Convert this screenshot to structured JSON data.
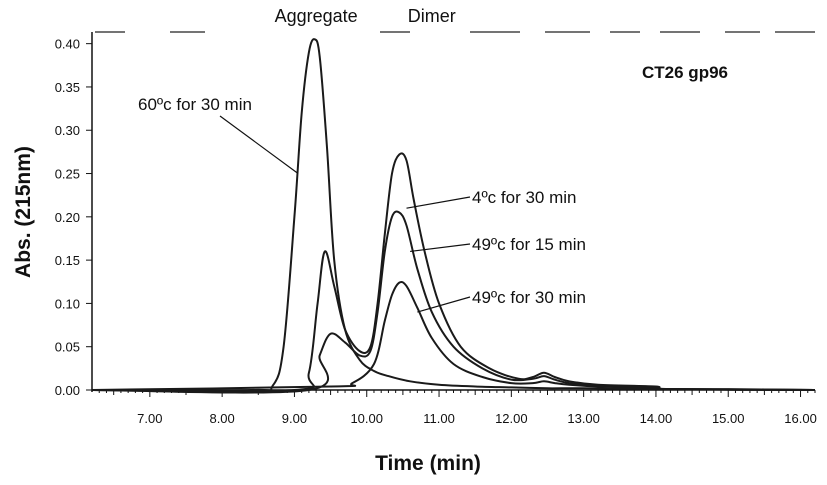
{
  "chart_data": {
    "type": "line",
    "title": "CT26 gp96",
    "xlabel": "Time (min)",
    "ylabel": "Abs. (215nm)",
    "xlim": [
      6.2,
      16.2
    ],
    "ylim": [
      0.0,
      0.41
    ],
    "x_ticks": [
      7.0,
      8.0,
      9.0,
      10.0,
      11.0,
      12.0,
      13.0,
      14.0,
      15.0,
      16.0
    ],
    "x_tick_labels": [
      "7.00",
      "8.00",
      "9.00",
      "10.00",
      "11.00",
      "12.00",
      "13.00",
      "14.00",
      "15.00",
      "16.00"
    ],
    "y_ticks": [
      0.0,
      0.05,
      0.1,
      0.15,
      0.2,
      0.25,
      0.3,
      0.35,
      0.4
    ],
    "y_tick_labels": [
      "0.00",
      "0.05",
      "0.10",
      "0.15",
      "0.20",
      "0.25",
      "0.30",
      "0.35",
      "0.40"
    ],
    "peak_labels": [
      {
        "text": "Aggregate",
        "x": 9.3
      },
      {
        "text": "Dimer",
        "x": 10.9
      }
    ],
    "grid": false,
    "series": [
      {
        "name": "60ºc for 30 min",
        "x": [
          6.2,
          8.4,
          8.7,
          8.85,
          9.0,
          9.1,
          9.2,
          9.28,
          9.35,
          9.45,
          9.55,
          9.7,
          9.9,
          10.1,
          10.3,
          10.6,
          11.0,
          11.5,
          12.0,
          12.5,
          13.0,
          14.0,
          15.0,
          16.2
        ],
        "y": [
          0.0,
          0.0,
          0.005,
          0.05,
          0.2,
          0.32,
          0.39,
          0.405,
          0.385,
          0.28,
          0.15,
          0.07,
          0.035,
          0.022,
          0.016,
          0.01,
          0.006,
          0.004,
          0.003,
          0.002,
          0.002,
          0.001,
          0.001,
          0.0
        ]
      },
      {
        "name": "4ºc for 30 min",
        "x": [
          6.2,
          9.0,
          9.2,
          9.32,
          9.42,
          9.55,
          9.7,
          9.9,
          10.05,
          10.15,
          10.25,
          10.35,
          10.45,
          10.55,
          10.65,
          10.8,
          11.0,
          11.3,
          11.7,
          12.1,
          12.3,
          12.45,
          12.6,
          12.8,
          13.2,
          14.0,
          14.2,
          16.2
        ],
        "y": [
          0.0,
          0.0,
          0.02,
          0.1,
          0.16,
          0.12,
          0.07,
          0.045,
          0.05,
          0.1,
          0.18,
          0.25,
          0.272,
          0.265,
          0.22,
          0.16,
          0.1,
          0.05,
          0.025,
          0.013,
          0.015,
          0.02,
          0.015,
          0.01,
          0.006,
          0.004,
          0.001,
          0.0
        ]
      },
      {
        "name": "49ºc for 15 min",
        "x": [
          6.2,
          9.2,
          9.35,
          9.5,
          9.7,
          9.9,
          10.05,
          10.15,
          10.25,
          10.35,
          10.45,
          10.55,
          10.7,
          10.9,
          11.2,
          11.6,
          12.0,
          12.3,
          12.45,
          12.6,
          12.8,
          13.2,
          14.0,
          14.2,
          16.2
        ],
        "y": [
          0.0,
          0.0,
          0.04,
          0.065,
          0.055,
          0.04,
          0.045,
          0.09,
          0.16,
          0.2,
          0.205,
          0.19,
          0.14,
          0.09,
          0.05,
          0.025,
          0.012,
          0.013,
          0.016,
          0.012,
          0.008,
          0.005,
          0.003,
          0.001,
          0.0
        ]
      },
      {
        "name": "49ºc for 30 min",
        "x": [
          6.2,
          9.5,
          9.8,
          10.1,
          10.25,
          10.35,
          10.45,
          10.55,
          10.7,
          10.9,
          11.2,
          11.6,
          12.0,
          12.3,
          12.45,
          12.6,
          12.8,
          13.2,
          14.0,
          14.2,
          16.2
        ],
        "y": [
          0.0,
          0.004,
          0.008,
          0.03,
          0.08,
          0.11,
          0.124,
          0.12,
          0.095,
          0.06,
          0.03,
          0.015,
          0.008,
          0.008,
          0.01,
          0.008,
          0.006,
          0.004,
          0.002,
          0.001,
          0.0
        ]
      }
    ],
    "annotations": [
      {
        "text": "60ºc for 30 min",
        "series": 0,
        "point_x": 9.05,
        "point_y": 0.25
      },
      {
        "text": "4ºc for 30 min",
        "series": 1,
        "point_x": 10.55,
        "point_y": 0.21
      },
      {
        "text": "49ºc for 15 min",
        "series": 2,
        "point_x": 10.6,
        "point_y": 0.16
      },
      {
        "text": "49ºc for 30 min",
        "series": 3,
        "point_x": 10.7,
        "point_y": 0.09
      }
    ]
  }
}
